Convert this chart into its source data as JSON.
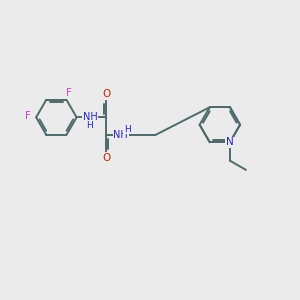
{
  "bg_color": "#ebebeb",
  "bond_color": "#4d6b6b",
  "F_color": "#cc44cc",
  "N_color": "#2222cc",
  "O_color": "#cc2200",
  "lw": 1.4,
  "figsize": [
    3.0,
    3.0
  ],
  "dpi": 100,
  "xlim": [
    0,
    10
  ],
  "ylim": [
    0,
    10
  ],
  "ring_r": 0.68,
  "fs": 7.0
}
